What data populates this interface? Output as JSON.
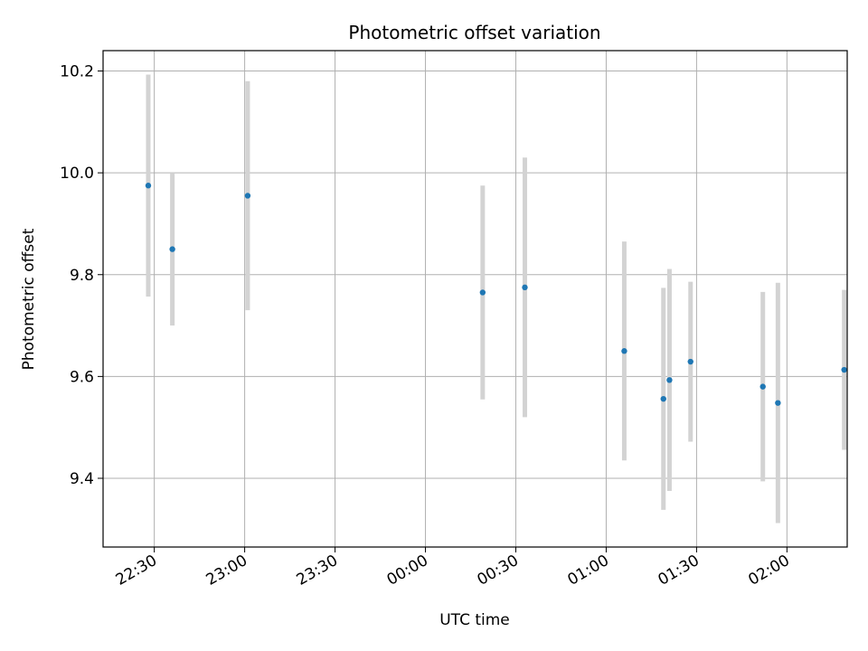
{
  "chart_data": {
    "type": "scatter",
    "title": "Photometric offset variation",
    "xlabel": "UTC time",
    "ylabel": "Photometric offset",
    "grid": true,
    "legend": "none",
    "x_start": "22:30",
    "x_ticks": [
      "22:30",
      "23:00",
      "23:30",
      "00:00",
      "00:30",
      "01:00",
      "01:30",
      "02:00"
    ],
    "y_ticks": [
      "9.4",
      "9.6",
      "9.8",
      "10.0",
      "10.2"
    ],
    "xlim": [
      "22:13",
      "02:20"
    ],
    "ylim": [
      9.265,
      10.24
    ],
    "colors": {
      "point": "#1f77b4",
      "errorbar": "#d3d3d3",
      "grid": "#b0b0b0"
    },
    "points": [
      {
        "x": "22:28",
        "y": 9.975,
        "yerr": 0.218
      },
      {
        "x": "22:36",
        "y": 9.85,
        "yerr": 0.15
      },
      {
        "x": "23:01",
        "y": 9.955,
        "yerr": 0.225
      },
      {
        "x": "00:19",
        "y": 9.765,
        "yerr": 0.21
      },
      {
        "x": "00:33",
        "y": 9.775,
        "yerr": 0.255
      },
      {
        "x": "01:06",
        "y": 9.65,
        "yerr": 0.215
      },
      {
        "x": "01:19",
        "y": 9.556,
        "yerr": 0.218
      },
      {
        "x": "01:21",
        "y": 9.593,
        "yerr": 0.218
      },
      {
        "x": "01:28",
        "y": 9.629,
        "yerr": 0.157
      },
      {
        "x": "01:52",
        "y": 9.58,
        "yerr": 0.186
      },
      {
        "x": "01:57",
        "y": 9.548,
        "yerr": 0.236
      },
      {
        "x": "02:19",
        "y": 9.613,
        "yerr": 0.157
      }
    ]
  }
}
